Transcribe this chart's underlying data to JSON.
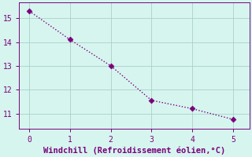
{
  "x": [
    0,
    1,
    2,
    3,
    4,
    5
  ],
  "y": [
    15.3,
    14.1,
    13.0,
    11.55,
    11.2,
    10.75
  ],
  "line_color": "#7B007B",
  "marker_color": "#7B007B",
  "bg_color": "#d6f5ef",
  "grid_color": "#aacfc8",
  "axis_color": "#7B007B",
  "tick_color": "#7B007B",
  "xlabel": "Windchill (Refroidissement éolien,°C)",
  "xlabel_fontsize": 7.5,
  "xlim": [
    -0.25,
    5.4
  ],
  "ylim": [
    10.35,
    15.65
  ],
  "xticks": [
    0,
    1,
    2,
    3,
    4,
    5
  ],
  "yticks": [
    11,
    12,
    13,
    14,
    15
  ],
  "tick_fontsize": 7,
  "line_width": 1.0,
  "marker_size": 3.5
}
